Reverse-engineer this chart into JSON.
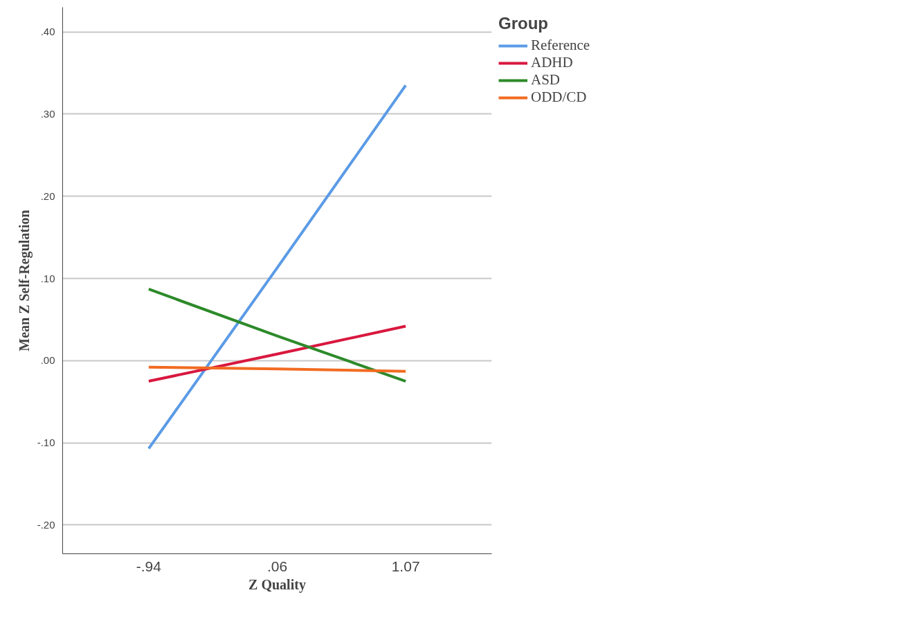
{
  "chart_data": {
    "type": "line",
    "xlabel": "Z Quality",
    "ylabel": "Mean Z Self-Regulation",
    "legend_title": "Group",
    "categories": [
      "-.94",
      ".06",
      "1.07"
    ],
    "ylim": [
      -0.235,
      0.43
    ],
    "yticks": [
      {
        "value": -0.2,
        "label": "-.20"
      },
      {
        "value": -0.1,
        "label": "-.10"
      },
      {
        "value": 0.0,
        "label": ".00"
      },
      {
        "value": 0.1,
        "label": ".10"
      },
      {
        "value": 0.2,
        "label": ".20"
      },
      {
        "value": 0.3,
        "label": ".30"
      },
      {
        "value": 0.4,
        "label": ".40"
      }
    ],
    "grid": "y",
    "legend": "top right",
    "marker": "none",
    "line_style": "solid",
    "series": [
      {
        "name": "Reference",
        "color": "#5b9be6",
        "values": [
          -0.107,
          0.113,
          0.335
        ]
      },
      {
        "name": "ADHD",
        "color": "#d9183f",
        "values": [
          -0.025,
          0.008,
          0.042
        ]
      },
      {
        "name": "ASD",
        "color": "#2d8a2a",
        "values": [
          0.087,
          0.03,
          -0.025
        ]
      },
      {
        "name": "ODD/CD",
        "color": "#f26b21",
        "values": [
          -0.008,
          -0.01,
          -0.013
        ]
      }
    ]
  }
}
